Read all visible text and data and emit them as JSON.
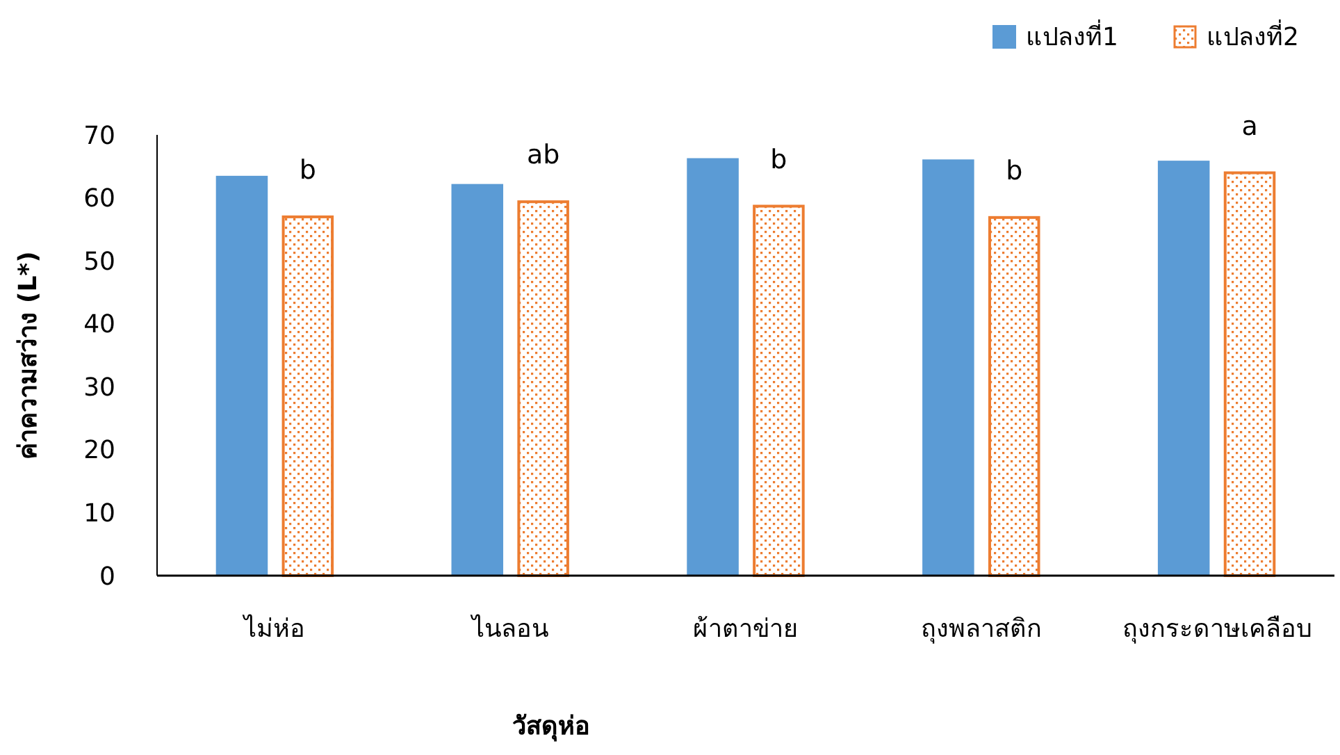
{
  "chart_data": {
    "type": "bar",
    "xlabel": "วัสดุห่อ",
    "ylabel": "ค่าความสว่าง (L*)",
    "categories": [
      "ไม่ห่อ",
      "ไนลอน",
      "ผ้าตาข่าย",
      "ถุงพลาสติก",
      "ถุงกระดาษเคลือบ"
    ],
    "series": [
      {
        "name": "แปลงที่1",
        "color": "#5b9bd5",
        "values": [
          63.5,
          62.2,
          66.3,
          66.1,
          65.9
        ]
      },
      {
        "name": "แปลงที่2",
        "color": "#ed7d31",
        "values": [
          57.2,
          59.6,
          58.9,
          57.1,
          64.2
        ]
      }
    ],
    "ylim": [
      0,
      70
    ],
    "yticks": [
      0,
      10,
      20,
      30,
      40,
      50,
      60,
      70
    ],
    "legend": "top right",
    "annotations": [
      "b",
      "ab",
      "b",
      "b",
      "a"
    ]
  }
}
